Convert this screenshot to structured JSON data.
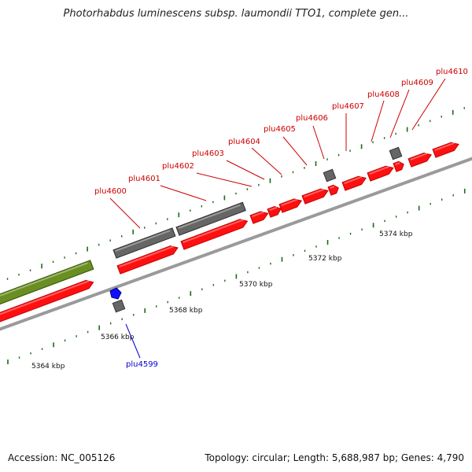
{
  "header": {
    "title": "Photorhabdus luminescens subsp. laumondii TTO1, complete gen..."
  },
  "footer": {
    "accession": "Accession: NC_005126",
    "summary": "Topology: circular; Length: 5,688,987 bp; Genes: 4,790"
  },
  "colors": {
    "forward_gene": "#ff1010",
    "other_gene": "#666666",
    "olive_feature": "#6b8e23",
    "reverse_gene": "#1010ff",
    "label_forward": "#cc0000",
    "label_reverse": "#0000cc",
    "backbone": "#999999",
    "tick_major": "#1a6b1a",
    "tick_minor": "#1a6b1a"
  },
  "scale_labels": [
    {
      "text": "5364 kbp",
      "kbp": 5364
    },
    {
      "text": "5366 kbp",
      "kbp": 5366
    },
    {
      "text": "5368 kbp",
      "kbp": 5368
    },
    {
      "text": "5370 kbp",
      "kbp": 5370
    },
    {
      "text": "5372 kbp",
      "kbp": 5372
    },
    {
      "text": "5374 kbp",
      "kbp": 5374
    }
  ],
  "gene_labels": [
    {
      "text": "plu4599",
      "strand": "reverse"
    },
    {
      "text": "plu4600",
      "strand": "forward"
    },
    {
      "text": "plu4601",
      "strand": "forward"
    },
    {
      "text": "plu4602",
      "strand": "forward"
    },
    {
      "text": "plu4603",
      "strand": "forward"
    },
    {
      "text": "plu4604",
      "strand": "forward"
    },
    {
      "text": "plu4605",
      "strand": "forward"
    },
    {
      "text": "plu4606",
      "strand": "forward"
    },
    {
      "text": "plu4607",
      "strand": "forward"
    },
    {
      "text": "plu4608",
      "strand": "forward"
    },
    {
      "text": "plu4609",
      "strand": "forward"
    },
    {
      "text": "plu4610",
      "strand": "forward"
    }
  ]
}
